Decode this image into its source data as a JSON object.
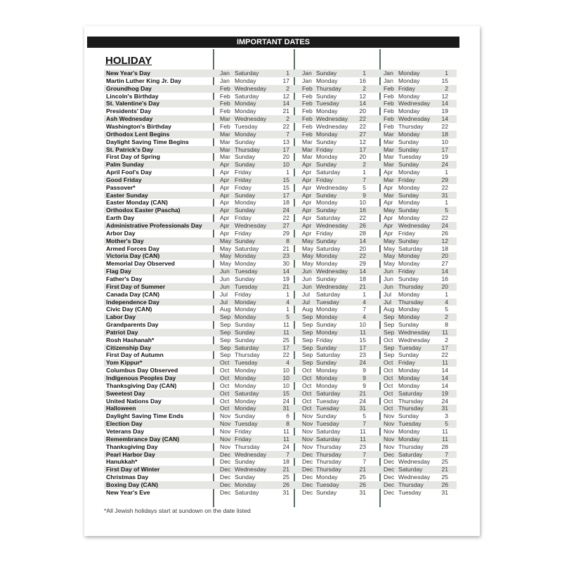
{
  "header": {
    "title": "IMPORTANT DATES"
  },
  "section_title": "HOLIDAY",
  "footnote": "*All Jewish holidays start at sundown on the date listed",
  "colors": {
    "header_bg": "#1a1a1a",
    "stripe": "#e6e6e3",
    "divider": "#5c7060"
  },
  "rows": [
    {
      "name": "New Year's Day",
      "d": [
        [
          "Jan",
          "Saturday",
          "1"
        ],
        [
          "Jan",
          "Sunday",
          "1"
        ],
        [
          "Jan",
          "Monday",
          "1"
        ]
      ]
    },
    {
      "name": "Martin Luther King Jr. Day",
      "d": [
        [
          "Jan",
          "Monday",
          "17"
        ],
        [
          "Jan",
          "Monday",
          "16"
        ],
        [
          "Jan",
          "Monday",
          "15"
        ]
      ]
    },
    {
      "name": "Groundhog Day",
      "d": [
        [
          "Feb",
          "Wednesday",
          "2"
        ],
        [
          "Feb",
          "Thursday",
          "2"
        ],
        [
          "Feb",
          "Friday",
          "2"
        ]
      ]
    },
    {
      "name": "Lincoln's Birthday",
      "d": [
        [
          "Feb",
          "Saturday",
          "12"
        ],
        [
          "Feb",
          "Sunday",
          "12"
        ],
        [
          "Feb",
          "Monday",
          "12"
        ]
      ]
    },
    {
      "name": "St. Valentine's Day",
      "d": [
        [
          "Feb",
          "Monday",
          "14"
        ],
        [
          "Feb",
          "Tuesday",
          "14"
        ],
        [
          "Feb",
          "Wednesday",
          "14"
        ]
      ]
    },
    {
      "name": "Presidents' Day",
      "d": [
        [
          "Feb",
          "Monday",
          "21"
        ],
        [
          "Feb",
          "Monday",
          "20"
        ],
        [
          "Feb",
          "Monday",
          "19"
        ]
      ]
    },
    {
      "name": "Ash Wednesday",
      "d": [
        [
          "Mar",
          "Wednesday",
          "2"
        ],
        [
          "Feb",
          "Wednesday",
          "22"
        ],
        [
          "Feb",
          "Wednesday",
          "14"
        ]
      ]
    },
    {
      "name": "Washington's Birthday",
      "d": [
        [
          "Feb",
          "Tuesday",
          "22"
        ],
        [
          "Feb",
          "Wednesday",
          "22"
        ],
        [
          "Feb",
          "Thursday",
          "22"
        ]
      ]
    },
    {
      "name": "Orthodox Lent Begins",
      "d": [
        [
          "Mar",
          "Monday",
          "7"
        ],
        [
          "Feb",
          "Monday",
          "27"
        ],
        [
          "Mar",
          "Monday",
          "18"
        ]
      ]
    },
    {
      "name": "Daylight Saving Time Begins",
      "d": [
        [
          "Mar",
          "Sunday",
          "13"
        ],
        [
          "Mar",
          "Sunday",
          "12"
        ],
        [
          "Mar",
          "Sunday",
          "10"
        ]
      ]
    },
    {
      "name": "St. Patrick's Day",
      "d": [
        [
          "Mar",
          "Thursday",
          "17"
        ],
        [
          "Mar",
          "Friday",
          "17"
        ],
        [
          "Mar",
          "Sunday",
          "17"
        ]
      ]
    },
    {
      "name": "First Day of Spring",
      "d": [
        [
          "Mar",
          "Sunday",
          "20"
        ],
        [
          "Mar",
          "Monday",
          "20"
        ],
        [
          "Mar",
          "Tuesday",
          "19"
        ]
      ]
    },
    {
      "name": "Palm Sunday",
      "d": [
        [
          "Apr",
          "Sunday",
          "10"
        ],
        [
          "Apr",
          "Sunday",
          "2"
        ],
        [
          "Mar",
          "Sunday",
          "24"
        ]
      ]
    },
    {
      "name": "April Fool's Day",
      "d": [
        [
          "Apr",
          "Friday",
          "1"
        ],
        [
          "Apr",
          "Saturday",
          "1"
        ],
        [
          "Apr",
          "Monday",
          "1"
        ]
      ]
    },
    {
      "name": "Good Friday",
      "d": [
        [
          "Apr",
          "Friday",
          "15"
        ],
        [
          "Apr",
          "Friday",
          "7"
        ],
        [
          "Mar",
          "Friday",
          "29"
        ]
      ]
    },
    {
      "name": "Passover*",
      "d": [
        [
          "Apr",
          "Friday",
          "15"
        ],
        [
          "Apr",
          "Wednesday",
          "5"
        ],
        [
          "Apr",
          "Monday",
          "22"
        ]
      ]
    },
    {
      "name": "Easter Sunday",
      "d": [
        [
          "Apr",
          "Sunday",
          "17"
        ],
        [
          "Apr",
          "Sunday",
          "9"
        ],
        [
          "Mar",
          "Sunday",
          "31"
        ]
      ]
    },
    {
      "name": "Easter Monday (CAN)",
      "d": [
        [
          "Apr",
          "Monday",
          "18"
        ],
        [
          "Apr",
          "Monday",
          "10"
        ],
        [
          "Apr",
          "Monday",
          "1"
        ]
      ]
    },
    {
      "name": "Orthodox Easter (Pascha)",
      "d": [
        [
          "Apr",
          "Sunday",
          "24"
        ],
        [
          "Apr",
          "Sunday",
          "16"
        ],
        [
          "May",
          "Sunday",
          "5"
        ]
      ]
    },
    {
      "name": "Earth Day",
      "d": [
        [
          "Apr",
          "Friday",
          "22"
        ],
        [
          "Apr",
          "Saturday",
          "22"
        ],
        [
          "Apr",
          "Monday",
          "22"
        ]
      ]
    },
    {
      "name": "Administrative Professionals Day",
      "d": [
        [
          "Apr",
          "Wednesday",
          "27"
        ],
        [
          "Apr",
          "Wednesday",
          "26"
        ],
        [
          "Apr",
          "Wednesday",
          "24"
        ]
      ]
    },
    {
      "name": "Arbor Day",
      "d": [
        [
          "Apr",
          "Friday",
          "29"
        ],
        [
          "Apr",
          "Friday",
          "28"
        ],
        [
          "Apr",
          "Friday",
          "26"
        ]
      ]
    },
    {
      "name": "Mother's Day",
      "d": [
        [
          "May",
          "Sunday",
          "8"
        ],
        [
          "May",
          "Sunday",
          "14"
        ],
        [
          "May",
          "Sunday",
          "12"
        ]
      ]
    },
    {
      "name": "Armed Forces Day",
      "d": [
        [
          "May",
          "Saturday",
          "21"
        ],
        [
          "May",
          "Saturday",
          "20"
        ],
        [
          "May",
          "Saturday",
          "18"
        ]
      ]
    },
    {
      "name": "Victoria Day (CAN)",
      "d": [
        [
          "May",
          "Monday",
          "23"
        ],
        [
          "May",
          "Monday",
          "22"
        ],
        [
          "May",
          "Monday",
          "20"
        ]
      ]
    },
    {
      "name": "Memorial Day Observed",
      "d": [
        [
          "May",
          "Monday",
          "30"
        ],
        [
          "May",
          "Monday",
          "29"
        ],
        [
          "May",
          "Monday",
          "27"
        ]
      ]
    },
    {
      "name": "Flag Day",
      "d": [
        [
          "Jun",
          "Tuesday",
          "14"
        ],
        [
          "Jun",
          "Wednesday",
          "14"
        ],
        [
          "Jun",
          "Friday",
          "14"
        ]
      ]
    },
    {
      "name": "Father's Day",
      "d": [
        [
          "Jun",
          "Sunday",
          "19"
        ],
        [
          "Jun",
          "Sunday",
          "18"
        ],
        [
          "Jun",
          "Sunday",
          "16"
        ]
      ]
    },
    {
      "name": "First Day of Summer",
      "d": [
        [
          "Jun",
          "Tuesday",
          "21"
        ],
        [
          "Jun",
          "Wednesday",
          "21"
        ],
        [
          "Jun",
          "Thursday",
          "20"
        ]
      ]
    },
    {
      "name": "Canada Day (CAN)",
      "d": [
        [
          "Jul",
          "Friday",
          "1"
        ],
        [
          "Jul",
          "Saturday",
          "1"
        ],
        [
          "Jul",
          "Monday",
          "1"
        ]
      ]
    },
    {
      "name": "Independence Day",
      "d": [
        [
          "Jul",
          "Monday",
          "4"
        ],
        [
          "Jul",
          "Tuesday",
          "4"
        ],
        [
          "Jul",
          "Thursday",
          "4"
        ]
      ]
    },
    {
      "name": "Civic Day (CAN)",
      "d": [
        [
          "Aug",
          "Monday",
          "1"
        ],
        [
          "Aug",
          "Monday",
          "7"
        ],
        [
          "Aug",
          "Monday",
          "5"
        ]
      ]
    },
    {
      "name": "Labor Day",
      "d": [
        [
          "Sep",
          "Monday",
          "5"
        ],
        [
          "Sep",
          "Monday",
          "4"
        ],
        [
          "Sep",
          "Monday",
          "2"
        ]
      ]
    },
    {
      "name": "Grandparents Day",
      "d": [
        [
          "Sep",
          "Sunday",
          "11"
        ],
        [
          "Sep",
          "Sunday",
          "10"
        ],
        [
          "Sep",
          "Sunday",
          "8"
        ]
      ]
    },
    {
      "name": "Patriot Day",
      "d": [
        [
          "Sep",
          "Sunday",
          "11"
        ],
        [
          "Sep",
          "Monday",
          "11"
        ],
        [
          "Sep",
          "Wednesday",
          "11"
        ]
      ]
    },
    {
      "name": "Rosh Hashanah*",
      "d": [
        [
          "Sep",
          "Sunday",
          "25"
        ],
        [
          "Sep",
          "Friday",
          "15"
        ],
        [
          "Oct",
          "Wednesday",
          "2"
        ]
      ]
    },
    {
      "name": "Citizenship Day",
      "d": [
        [
          "Sep",
          "Saturday",
          "17"
        ],
        [
          "Sep",
          "Sunday",
          "17"
        ],
        [
          "Sep",
          "Tuesday",
          "17"
        ]
      ]
    },
    {
      "name": "First Day of Autumn",
      "d": [
        [
          "Sep",
          "Thursday",
          "22"
        ],
        [
          "Sep",
          "Saturday",
          "23"
        ],
        [
          "Sep",
          "Sunday",
          "22"
        ]
      ]
    },
    {
      "name": "Yom Kippur*",
      "d": [
        [
          "Oct",
          "Tuesday",
          "4"
        ],
        [
          "Sep",
          "Sunday",
          "24"
        ],
        [
          "Oct",
          "Friday",
          "11"
        ]
      ]
    },
    {
      "name": "Columbus Day Observed",
      "d": [
        [
          "Oct",
          "Monday",
          "10"
        ],
        [
          "Oct",
          "Monday",
          "9"
        ],
        [
          "Oct",
          "Monday",
          "14"
        ]
      ]
    },
    {
      "name": "Indigenous Peoples Day",
      "d": [
        [
          "Oct",
          "Monday",
          "10"
        ],
        [
          "Oct",
          "Monday",
          "9"
        ],
        [
          "Oct",
          "Monday",
          "14"
        ]
      ]
    },
    {
      "name": "Thanksgiving Day (CAN)",
      "d": [
        [
          "Oct",
          "Monday",
          "10"
        ],
        [
          "Oct",
          "Monday",
          "9"
        ],
        [
          "Oct",
          "Monday",
          "14"
        ]
      ]
    },
    {
      "name": "Sweetest Day",
      "d": [
        [
          "Oct",
          "Saturday",
          "15"
        ],
        [
          "Oct",
          "Saturday",
          "21"
        ],
        [
          "Oct",
          "Saturday",
          "19"
        ]
      ]
    },
    {
      "name": "United Nations Day",
      "d": [
        [
          "Oct",
          "Monday",
          "24"
        ],
        [
          "Oct",
          "Tuesday",
          "24"
        ],
        [
          "Oct",
          "Thursday",
          "24"
        ]
      ]
    },
    {
      "name": "Halloween",
      "d": [
        [
          "Oct",
          "Monday",
          "31"
        ],
        [
          "Oct",
          "Tuesday",
          "31"
        ],
        [
          "Oct",
          "Thursday",
          "31"
        ]
      ]
    },
    {
      "name": "Daylight Saving Time Ends",
      "d": [
        [
          "Nov",
          "Sunday",
          "6"
        ],
        [
          "Nov",
          "Sunday",
          "5"
        ],
        [
          "Nov",
          "Sunday",
          "3"
        ]
      ]
    },
    {
      "name": "Election Day",
      "d": [
        [
          "Nov",
          "Tuesday",
          "8"
        ],
        [
          "Nov",
          "Tuesday",
          "7"
        ],
        [
          "Nov",
          "Tuesday",
          "5"
        ]
      ]
    },
    {
      "name": "Veterans Day",
      "d": [
        [
          "Nov",
          "Friday",
          "11"
        ],
        [
          "Nov",
          "Saturday",
          "11"
        ],
        [
          "Nov",
          "Monday",
          "11"
        ]
      ]
    },
    {
      "name": "Remembrance Day (CAN)",
      "d": [
        [
          "Nov",
          "Friday",
          "11"
        ],
        [
          "Nov",
          "Saturday",
          "11"
        ],
        [
          "Nov",
          "Monday",
          "11"
        ]
      ]
    },
    {
      "name": "Thanksgiving Day",
      "d": [
        [
          "Nov",
          "Thursday",
          "24"
        ],
        [
          "Nov",
          "Thursday",
          "23"
        ],
        [
          "Nov",
          "Thursday",
          "28"
        ]
      ]
    },
    {
      "name": "Pearl Harbor Day",
      "d": [
        [
          "Dec",
          "Wednesday",
          "7"
        ],
        [
          "Dec",
          "Thursday",
          "7"
        ],
        [
          "Dec",
          "Saturday",
          "7"
        ]
      ]
    },
    {
      "name": "Hanukkah*",
      "d": [
        [
          "Dec",
          "Sunday",
          "18"
        ],
        [
          "Dec",
          "Thursday",
          "7"
        ],
        [
          "Dec",
          "Wednesday",
          "25"
        ]
      ]
    },
    {
      "name": "First Day of Winter",
      "d": [
        [
          "Dec",
          "Wednesday",
          "21"
        ],
        [
          "Dec",
          "Thursday",
          "21"
        ],
        [
          "Dec",
          "Saturday",
          "21"
        ]
      ]
    },
    {
      "name": "Christmas Day",
      "d": [
        [
          "Dec",
          "Sunday",
          "25"
        ],
        [
          "Dec",
          "Monday",
          "25"
        ],
        [
          "Dec",
          "Wednesday",
          "25"
        ]
      ]
    },
    {
      "name": "Boxing Day (CAN)",
      "d": [
        [
          "Dec",
          "Monday",
          "26"
        ],
        [
          "Dec",
          "Tuesday",
          "26"
        ],
        [
          "Dec",
          "Thursday",
          "26"
        ]
      ]
    },
    {
      "name": "New Year's Eve",
      "d": [
        [
          "Dec",
          "Saturday",
          "31"
        ],
        [
          "Dec",
          "Sunday",
          "31"
        ],
        [
          "Dec",
          "Tuesday",
          "31"
        ]
      ]
    }
  ]
}
